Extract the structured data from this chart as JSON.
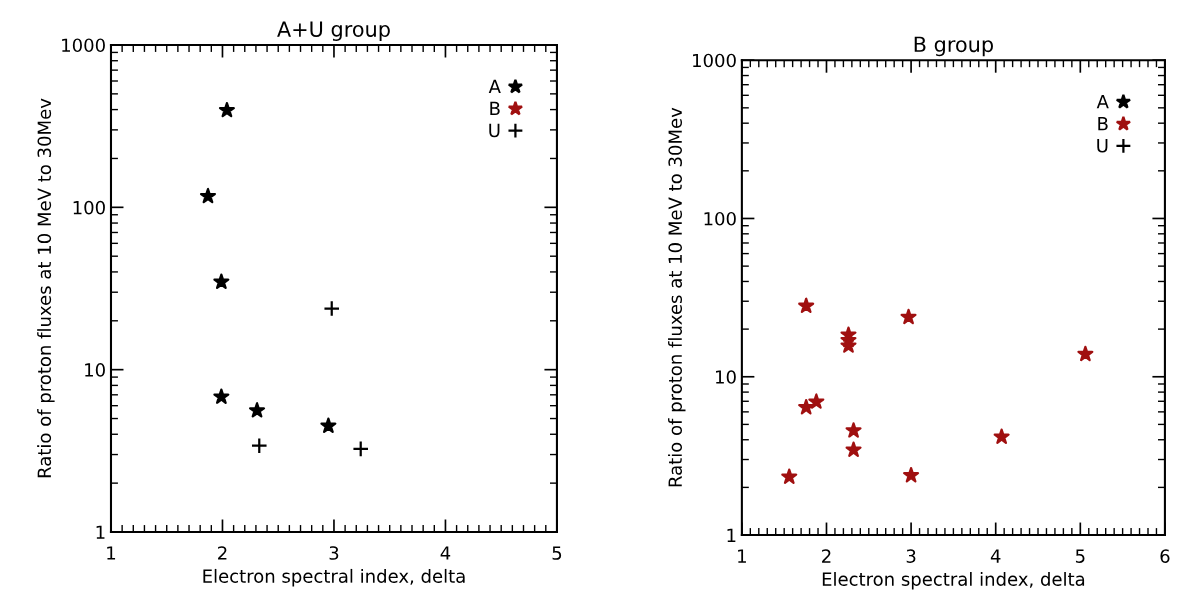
{
  "chart_data": [
    {
      "type": "scatter",
      "title": "A+U group",
      "xlabel": "Electron spectral index, delta",
      "ylabel": "Ratio of proton fluxes at 10 MeV to 30Mev",
      "log": "y",
      "xlim": [
        1,
        5
      ],
      "xticks": [
        1,
        2,
        3,
        4,
        5
      ],
      "ylim": [
        1,
        1000
      ],
      "yticks": [
        1,
        10,
        100,
        1000
      ],
      "grid": false,
      "legend": "top right",
      "series": [
        {
          "name": "A",
          "color": "#000000",
          "marker": "star",
          "x": [
            2.04,
            1.87,
            1.99,
            1.99,
            2.31,
            2.95
          ],
          "values": [
            396,
            117,
            34.7,
            6.8,
            5.6,
            4.5
          ]
        },
        {
          "name": "B",
          "color": "#a01010",
          "marker": "star"
        },
        {
          "name": "U",
          "color": "#000000",
          "marker": "cross",
          "x": [
            2.98,
            2.33,
            3.24
          ],
          "values": [
            23.8,
            3.4,
            3.25
          ]
        }
      ]
    },
    {
      "type": "scatter",
      "title": "B group",
      "xlabel": "Electron spectral index, delta",
      "ylabel": "Ratio of proton fluxes at 10 MeV to 30Mev",
      "log": "y",
      "xlim": [
        1,
        6
      ],
      "xticks": [
        1,
        2,
        3,
        4,
        5,
        6
      ],
      "ylim": [
        1,
        1000
      ],
      "yticks": [
        1,
        10,
        100,
        1000
      ],
      "grid": false,
      "legend": "top right",
      "series": [
        {
          "name": "A",
          "color": "#000000",
          "marker": "star"
        },
        {
          "name": "B",
          "color": "#a01010",
          "marker": "star",
          "x": [
            1.76,
            2.97,
            2.26,
            2.26,
            2.26,
            5.06,
            1.88,
            1.76,
            2.32,
            2.32,
            4.07,
            1.56,
            3.0
          ],
          "values": [
            28.0,
            23.8,
            18.4,
            17.0,
            15.7,
            13.9,
            6.95,
            6.4,
            4.57,
            3.45,
            4.17,
            2.33,
            2.38
          ]
        },
        {
          "name": "U",
          "color": "#000000",
          "marker": "cross"
        }
      ]
    }
  ]
}
